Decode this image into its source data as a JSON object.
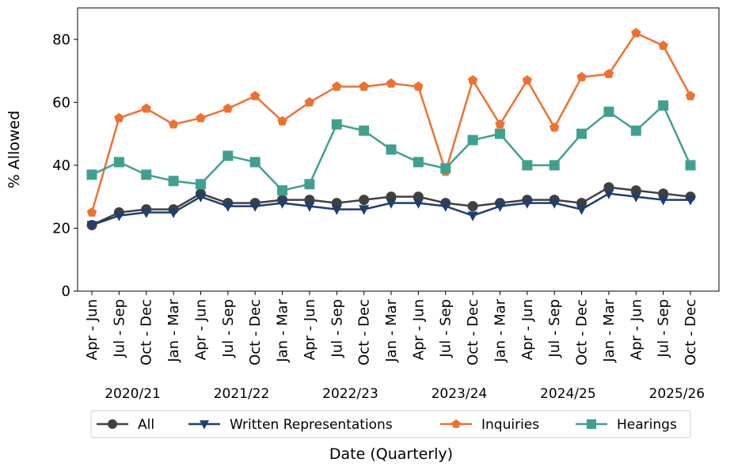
{
  "chart_data": {
    "type": "line",
    "title": "",
    "xlabel": "Date (Quarterly)",
    "ylabel": "% Allowed",
    "ylim": [
      0,
      90
    ],
    "yticks": [
      0,
      20,
      40,
      60,
      80
    ],
    "grid": false,
    "legend_placement": "bottom",
    "categories": [
      "Apr - Jun",
      "Jul - Sep",
      "Oct - Dec",
      "Jan - Mar",
      "Apr - Jun",
      "Jul - Sep",
      "Oct - Dec",
      "Jan - Mar",
      "Apr - Jun",
      "Jul - Sep",
      "Oct - Dec",
      "Jan - Mar",
      "Apr - Jun",
      "Jul - Sep",
      "Oct - Dec",
      "Jan - Mar",
      "Apr - Jun",
      "Jul - Sep",
      "Oct - Dec",
      "Jan - Mar",
      "Apr - Jun",
      "Jul - Sep",
      "Oct - Dec"
    ],
    "year_labels": [
      "2020/21",
      "2021/22",
      "2022/23",
      "2023/24",
      "2024/25",
      "2025/26"
    ],
    "series": [
      {
        "name": "All",
        "color": "#404040",
        "marker": "circle",
        "values": [
          21,
          25,
          26,
          26,
          31,
          28,
          28,
          29,
          29,
          28,
          29,
          30,
          30,
          28,
          27,
          28,
          29,
          29,
          28,
          33,
          32,
          31,
          30
        ]
      },
      {
        "name": "Written Representations",
        "color": "#1f3f6e",
        "marker": "triangle-down",
        "values": [
          21,
          24,
          25,
          25,
          30,
          27,
          27,
          28,
          27,
          26,
          26,
          28,
          28,
          27,
          24,
          27,
          28,
          28,
          26,
          31,
          30,
          29,
          29
        ]
      },
      {
        "name": "Inquiries",
        "color": "#f07030",
        "marker": "pentagon",
        "values": [
          25,
          55,
          58,
          53,
          55,
          58,
          62,
          54,
          60,
          65,
          65,
          66,
          65,
          38,
          67,
          53,
          67,
          52,
          68,
          69,
          82,
          78,
          62
        ]
      },
      {
        "name": "Hearings",
        "color": "#40a090",
        "marker": "square",
        "values": [
          37,
          41,
          37,
          35,
          34,
          43,
          41,
          32,
          34,
          53,
          51,
          45,
          41,
          39,
          48,
          50,
          40,
          40,
          50,
          57,
          51,
          59,
          40
        ]
      }
    ]
  }
}
